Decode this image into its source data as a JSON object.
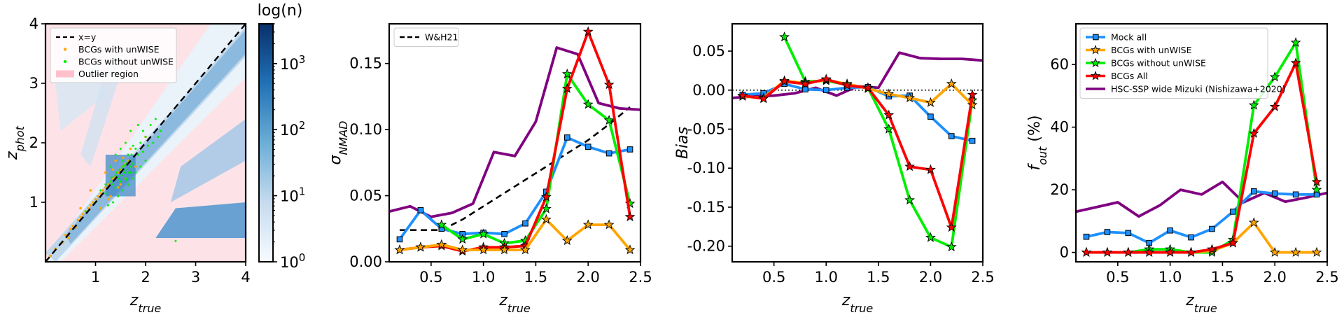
{
  "chart_data": [
    {
      "type": "heatmap",
      "title": "",
      "xlabel": "z_true",
      "ylabel": "z_phot",
      "xlim": [
        0,
        4
      ],
      "ylim": [
        0,
        4
      ],
      "xticks": [
        1,
        2,
        3,
        4
      ],
      "yticks": [
        1,
        2,
        3,
        4
      ],
      "colorbar": {
        "label": "log(n)",
        "scale": "log",
        "range": [
          1,
          4000
        ],
        "ticks": [
          {
            "base": "10",
            "exp": "0",
            "value": 1
          },
          {
            "base": "10",
            "exp": "1",
            "value": 10
          },
          {
            "base": "10",
            "exp": "2",
            "value": 100
          },
          {
            "base": "10",
            "exp": "3",
            "value": 1000
          }
        ]
      },
      "legend": [
        {
          "label": "x=y",
          "style": "dashed-line",
          "color": "#000000"
        },
        {
          "label": "BCGs with unWISE",
          "style": "point",
          "color": "#ffa500"
        },
        {
          "label": "BCGs without unWISE",
          "style": "point",
          "color": "#00ee00"
        },
        {
          "label": "Outlier region",
          "style": "patch",
          "color": "#ffc0cb"
        }
      ],
      "scatter": {
        "with_unwise": [
          [
            0.1,
            0.1
          ],
          [
            0.2,
            0.22
          ],
          [
            0.3,
            0.3
          ],
          [
            0.35,
            0.33
          ],
          [
            0.4,
            0.45
          ],
          [
            0.45,
            0.4
          ],
          [
            0.5,
            0.55
          ],
          [
            0.55,
            0.6
          ],
          [
            0.6,
            0.58
          ],
          [
            0.65,
            0.7
          ],
          [
            0.7,
            0.75
          ],
          [
            0.75,
            0.8
          ],
          [
            0.8,
            0.85
          ],
          [
            0.85,
            0.9
          ],
          [
            0.9,
            0.95
          ],
          [
            0.95,
            1.0
          ],
          [
            1.0,
            1.05
          ],
          [
            1.05,
            1.1
          ],
          [
            1.1,
            1.15
          ],
          [
            1.15,
            1.2
          ],
          [
            1.2,
            1.25
          ],
          [
            1.25,
            1.3
          ],
          [
            1.3,
            1.35
          ],
          [
            1.35,
            1.4
          ],
          [
            1.4,
            1.42
          ],
          [
            1.45,
            1.5
          ],
          [
            1.5,
            1.55
          ],
          [
            1.55,
            1.6
          ],
          [
            1.6,
            1.65
          ],
          [
            1.65,
            1.7
          ],
          [
            1.2,
            1.5
          ],
          [
            1.3,
            1.1
          ],
          [
            1.5,
            1.3
          ],
          [
            1.4,
            1.7
          ],
          [
            0.9,
            1.2
          ],
          [
            1.7,
            1.9
          ],
          [
            1.8,
            1.6
          ],
          [
            2.0,
            2.1
          ],
          [
            1.1,
            0.9
          ],
          [
            0.7,
            0.9
          ],
          [
            1.6,
            1.4
          ],
          [
            1.45,
            1.25
          ],
          [
            1.55,
            1.75
          ],
          [
            1.35,
            1.55
          ],
          [
            1.25,
            1.05
          ]
        ],
        "without_unwise": [
          [
            0.8,
            0.85
          ],
          [
            1.0,
            1.0
          ],
          [
            1.1,
            1.2
          ],
          [
            1.2,
            1.15
          ],
          [
            1.3,
            1.35
          ],
          [
            1.35,
            1.3
          ],
          [
            1.4,
            1.45
          ],
          [
            1.42,
            1.5
          ],
          [
            1.45,
            1.4
          ],
          [
            1.48,
            1.55
          ],
          [
            1.5,
            1.5
          ],
          [
            1.52,
            1.45
          ],
          [
            1.55,
            1.6
          ],
          [
            1.58,
            1.5
          ],
          [
            1.6,
            1.55
          ],
          [
            1.62,
            1.65
          ],
          [
            1.65,
            1.5
          ],
          [
            1.68,
            1.7
          ],
          [
            1.7,
            1.6
          ],
          [
            1.72,
            1.8
          ],
          [
            1.75,
            1.65
          ],
          [
            1.8,
            1.9
          ],
          [
            1.85,
            1.8
          ],
          [
            1.9,
            2.0
          ],
          [
            1.95,
            1.85
          ],
          [
            2.0,
            2.1
          ],
          [
            2.05,
            1.95
          ],
          [
            2.1,
            2.3
          ],
          [
            2.15,
            2.0
          ],
          [
            2.2,
            2.4
          ],
          [
            2.25,
            2.1
          ],
          [
            1.5,
            1.9
          ],
          [
            1.6,
            2.0
          ],
          [
            1.7,
            2.2
          ],
          [
            1.4,
            1.8
          ],
          [
            1.3,
            1.6
          ],
          [
            1.55,
            1.2
          ],
          [
            1.65,
            1.3
          ],
          [
            1.75,
            1.4
          ],
          [
            1.45,
            1.1
          ],
          [
            1.35,
            1.0
          ],
          [
            1.25,
            0.95
          ],
          [
            1.8,
            1.5
          ],
          [
            1.9,
            1.6
          ],
          [
            2.0,
            1.7
          ],
          [
            1.5,
            1.35
          ],
          [
            1.6,
            1.4
          ],
          [
            1.7,
            1.5
          ],
          [
            1.4,
            1.25
          ],
          [
            1.55,
            1.7
          ],
          [
            1.65,
            1.8
          ],
          [
            1.75,
            1.95
          ],
          [
            2.3,
            2.2
          ],
          [
            1.85,
            2.3
          ],
          [
            1.95,
            2.2
          ],
          [
            2.6,
            0.35
          ],
          [
            1.2,
            1.3
          ],
          [
            1.32,
            1.42
          ],
          [
            1.58,
            1.62
          ],
          [
            1.62,
            1.38
          ]
        ]
      }
    },
    {
      "type": "line",
      "title": "",
      "xlabel": "z_true",
      "ylabel": "σ_NMAD",
      "xlim": [
        0.1,
        2.5
      ],
      "ylim": [
        0,
        0.18
      ],
      "xticks": [
        0.5,
        1.0,
        1.5,
        2.0,
        2.5
      ],
      "yticks": [
        0.0,
        0.05,
        0.1,
        0.15
      ],
      "legend": [
        "W&H21"
      ],
      "series": [
        {
          "name": "W&H21",
          "color": "#000000",
          "marker": "none",
          "dash": true,
          "x": [
            0.2,
            0.4,
            0.6,
            0.8,
            1.0,
            1.2,
            1.4,
            1.6,
            1.8,
            2.0,
            2.2,
            2.4
          ],
          "values": [
            0.024,
            0.024,
            0.024,
            0.032,
            0.042,
            0.052,
            0.062,
            0.072,
            0.082,
            0.092,
            0.104,
            0.117
          ]
        },
        {
          "name": "HSC-SSP wide Mizuki (Nishizawa+2020)",
          "color": "#800080",
          "marker": "none",
          "x": [
            0.1,
            0.3,
            0.5,
            0.7,
            0.9,
            1.1,
            1.3,
            1.5,
            1.7,
            1.9,
            2.1,
            2.3,
            2.5
          ],
          "values": [
            0.038,
            0.042,
            0.034,
            0.037,
            0.044,
            0.083,
            0.08,
            0.106,
            0.162,
            0.157,
            0.12,
            0.116,
            0.115
          ]
        },
        {
          "name": "Mock all",
          "color": "#1e90ff",
          "marker": "square",
          "x": [
            0.2,
            0.4,
            0.6,
            0.8,
            1.0,
            1.2,
            1.4,
            1.6,
            1.8,
            2.0,
            2.2,
            2.4
          ],
          "values": [
            0.017,
            0.039,
            0.025,
            0.021,
            0.022,
            0.021,
            0.029,
            0.053,
            0.094,
            0.087,
            0.082,
            0.085
          ]
        },
        {
          "name": "BCGs without unWISE",
          "color": "#00ee00",
          "marker": "star",
          "x": [
            0.6,
            0.8,
            1.0,
            1.2,
            1.4,
            1.6,
            1.8,
            2.0,
            2.2,
            2.4
          ],
          "values": [
            0.028,
            0.017,
            0.021,
            0.014,
            0.016,
            0.04,
            0.142,
            0.119,
            0.107,
            0.044
          ]
        },
        {
          "name": "BCGs All",
          "color": "#ff0000",
          "marker": "star",
          "x": [
            0.2,
            0.4,
            0.6,
            0.8,
            1.0,
            1.2,
            1.4,
            1.6,
            1.8,
            2.0,
            2.2,
            2.4
          ],
          "values": [
            0.009,
            0.011,
            0.012,
            0.008,
            0.011,
            0.011,
            0.012,
            0.049,
            0.131,
            0.174,
            0.134,
            0.034
          ]
        },
        {
          "name": "BCGs with unWISE",
          "color": "#ffa500",
          "marker": "star",
          "x": [
            0.2,
            0.4,
            0.6,
            0.8,
            1.0,
            1.2,
            1.4,
            1.6,
            1.8,
            2.0,
            2.2,
            2.4
          ],
          "values": [
            0.009,
            0.011,
            0.013,
            0.009,
            0.009,
            0.009,
            0.009,
            0.032,
            0.016,
            0.028,
            0.028,
            0.009
          ]
        }
      ]
    },
    {
      "type": "line",
      "title": "",
      "xlabel": "z_true",
      "ylabel": "Bias",
      "xlim": [
        0.1,
        2.5
      ],
      "ylim": [
        -0.22,
        0.085
      ],
      "xticks": [
        0.5,
        1.0,
        1.5,
        2.0,
        2.5
      ],
      "yticks": [
        -0.2,
        -0.15,
        -0.1,
        -0.05,
        0.0,
        0.05
      ],
      "reference_line": {
        "y": 0,
        "style": "dotted"
      },
      "series": [
        {
          "name": "HSC-SSP wide Mizuki (Nishizawa+2020)",
          "color": "#800080",
          "marker": "none",
          "x": [
            0.1,
            0.3,
            0.5,
            0.7,
            0.9,
            1.1,
            1.3,
            1.5,
            1.7,
            1.9,
            2.1,
            2.3,
            2.5
          ],
          "values": [
            -0.01,
            -0.008,
            -0.007,
            -0.004,
            0.003,
            -0.007,
            0.005,
            0.003,
            0.048,
            0.041,
            0.04,
            0.04,
            0.038
          ]
        },
        {
          "name": "Mock all",
          "color": "#1e90ff",
          "marker": "square",
          "x": [
            0.2,
            0.4,
            0.6,
            0.8,
            1.0,
            1.2,
            1.4,
            1.6,
            1.8,
            2.0,
            2.2,
            2.4
          ],
          "values": [
            -0.006,
            -0.004,
            0.008,
            0.001,
            0.0,
            0.003,
            0.004,
            -0.008,
            -0.007,
            -0.034,
            -0.059,
            -0.065
          ]
        },
        {
          "name": "BCGs without unWISE",
          "color": "#00ee00",
          "marker": "star",
          "x": [
            0.6,
            0.8,
            1.0,
            1.2,
            1.4,
            1.6,
            1.8,
            2.0,
            2.2,
            2.4
          ],
          "values": [
            0.068,
            0.011,
            0.012,
            0.007,
            0.003,
            -0.05,
            -0.141,
            -0.189,
            -0.201,
            -0.013
          ]
        },
        {
          "name": "BCGs with unWISE",
          "color": "#ffa500",
          "marker": "star",
          "x": [
            0.2,
            0.4,
            0.6,
            0.8,
            1.0,
            1.2,
            1.4,
            1.6,
            1.8,
            2.0,
            2.2,
            2.4
          ],
          "values": [
            -0.008,
            -0.01,
            0.012,
            0.009,
            0.013,
            0.008,
            0.002,
            -0.005,
            -0.01,
            -0.016,
            0.008,
            -0.019
          ]
        },
        {
          "name": "BCGs All",
          "color": "#ff0000",
          "marker": "star",
          "x": [
            0.2,
            0.4,
            0.6,
            0.8,
            1.0,
            1.2,
            1.4,
            1.6,
            1.8,
            2.0,
            2.2,
            2.4
          ],
          "values": [
            -0.007,
            -0.011,
            0.011,
            0.008,
            0.014,
            0.006,
            0.003,
            -0.032,
            -0.098,
            -0.102,
            -0.176,
            -0.006
          ]
        }
      ]
    },
    {
      "type": "line",
      "title": "",
      "xlabel": "z_true",
      "ylabel": "f_out (%)",
      "xlim": [
        0.1,
        2.5
      ],
      "ylim": [
        -3,
        73
      ],
      "xticks": [
        0.5,
        1.0,
        1.5,
        2.0,
        2.5
      ],
      "yticks": [
        0,
        20,
        40,
        60
      ],
      "legend": [
        "Mock all",
        "BCGs with unWISE",
        "BCGs without unWISE",
        "BCGs All",
        "HSC-SSP wide Mizuki (Nishizawa+2020)"
      ],
      "series": [
        {
          "name": "HSC-SSP wide Mizuki (Nishizawa+2020)",
          "color": "#800080",
          "marker": "none",
          "x": [
            0.1,
            0.3,
            0.5,
            0.7,
            0.9,
            1.1,
            1.3,
            1.5,
            1.7,
            1.9,
            2.1,
            2.3,
            2.5
          ],
          "values": [
            13,
            14.5,
            16,
            11.5,
            15,
            20,
            18.5,
            22.5,
            16,
            19,
            16.2,
            17.5,
            19
          ]
        },
        {
          "name": "Mock all",
          "color": "#1e90ff",
          "marker": "square",
          "x": [
            0.2,
            0.4,
            0.6,
            0.8,
            1.0,
            1.2,
            1.4,
            1.6,
            1.8,
            2.0,
            2.2,
            2.4
          ],
          "values": [
            5,
            6.5,
            6.2,
            3,
            7,
            4.8,
            7.5,
            13,
            19.5,
            18.8,
            18.5,
            18.5
          ]
        },
        {
          "name": "BCGs without unWISE",
          "color": "#00ee00",
          "marker": "star",
          "x": [
            0.6,
            0.8,
            1.0,
            1.2,
            1.4,
            1.6,
            1.8,
            2.0,
            2.2,
            2.4
          ],
          "values": [
            0,
            1,
            1,
            0,
            0,
            4,
            47,
            56,
            67,
            20
          ]
        },
        {
          "name": "BCGs with unWISE",
          "color": "#ffa500",
          "marker": "star",
          "x": [
            0.2,
            0.4,
            0.6,
            0.8,
            1.0,
            1.2,
            1.4,
            1.6,
            1.8,
            2.0,
            2.2,
            2.4
          ],
          "values": [
            0,
            0,
            0,
            0,
            0,
            0,
            0.5,
            3,
            9.5,
            0,
            0,
            0
          ]
        },
        {
          "name": "BCGs All",
          "color": "#ff0000",
          "marker": "star",
          "x": [
            0.2,
            0.4,
            0.6,
            0.8,
            1.0,
            1.2,
            1.4,
            1.6,
            1.8,
            2.0,
            2.2,
            2.4
          ],
          "values": [
            0,
            0,
            0,
            0,
            0,
            0,
            1,
            3,
            38,
            46.5,
            60.5,
            22.5
          ]
        }
      ]
    }
  ]
}
